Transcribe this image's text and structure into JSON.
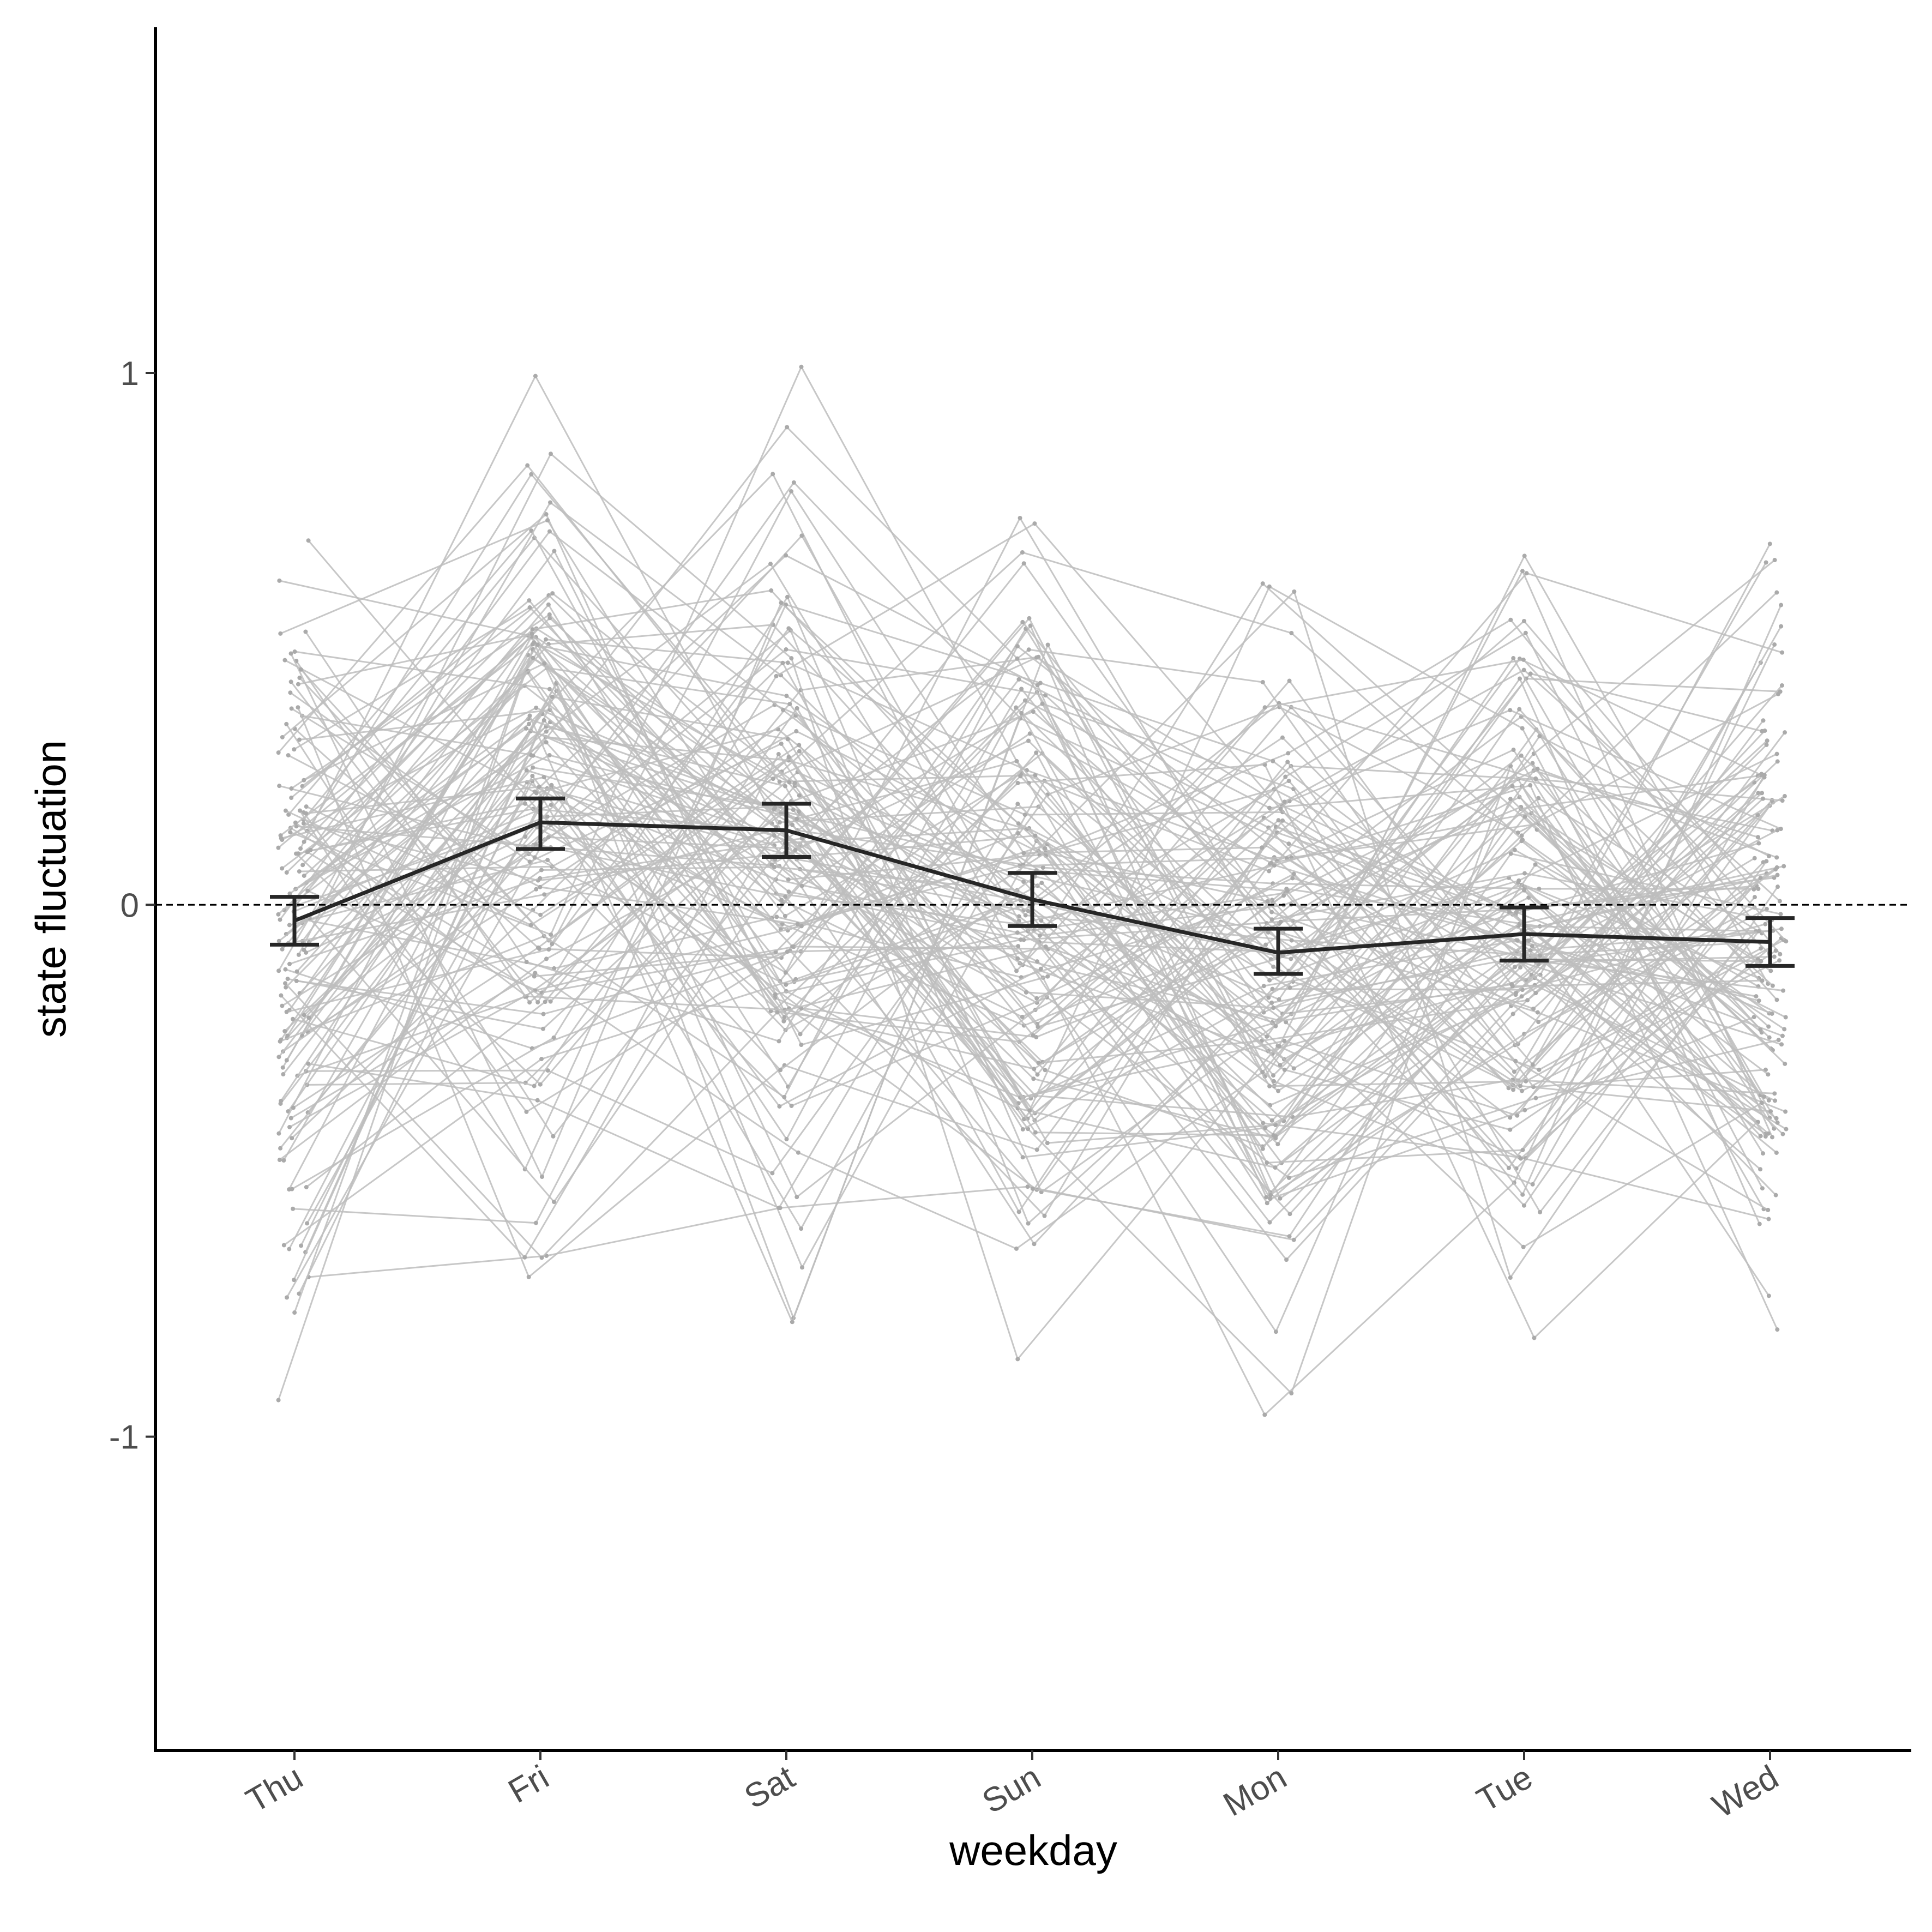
{
  "chart_data": {
    "type": "line",
    "xlabel": "weekday",
    "ylabel": "state fluctuation",
    "categories": [
      "Thu",
      "Fri",
      "Sat",
      "Sun",
      "Mon",
      "Tue",
      "Wed"
    ],
    "ylim": [
      -1.59,
      1.65
    ],
    "yticks": [
      {
        "value": 1,
        "label": "1"
      },
      {
        "value": 0,
        "label": "0"
      },
      {
        "value": -1,
        "label": "-1"
      }
    ],
    "reference_line": {
      "y": 0,
      "style": "dashed"
    },
    "grid": false,
    "mean_series": {
      "mean": [
        -0.03,
        0.155,
        0.14,
        0.01,
        -0.09,
        -0.055,
        -0.07
      ],
      "lower": [
        -0.075,
        0.105,
        0.09,
        -0.04,
        -0.13,
        -0.105,
        -0.115
      ],
      "upper": [
        0.015,
        0.2,
        0.19,
        0.06,
        -0.045,
        -0.005,
        -0.025
      ]
    },
    "individual_series": {
      "count": 140,
      "note_visual": "thin light-grey per-person trajectories across weekdays",
      "sample_values": [
        [
          -0.7,
          -0.66,
          -0.57,
          -0.53,
          -0.63,
          -0.19,
          0.21
        ],
        [
          -0.64,
          -0.29,
          -0.14,
          0.01,
          -0.35,
          -0.04,
          -0.05
        ],
        [
          0.16,
          0.69,
          0.14,
          0.07,
          0.04,
          0.03,
          0.03
        ],
        [
          0.46,
          0.21,
          0.33,
          -0.07,
          -0.09,
          -0.4,
          0.08
        ],
        [
          -0.01,
          0.34,
          0.81,
          -0.11,
          -0.28,
          0.12,
          -0.24
        ]
      ]
    },
    "colors": {
      "individual": "#bdbdbd",
      "mean": "#262626",
      "axis": "#000000"
    }
  }
}
